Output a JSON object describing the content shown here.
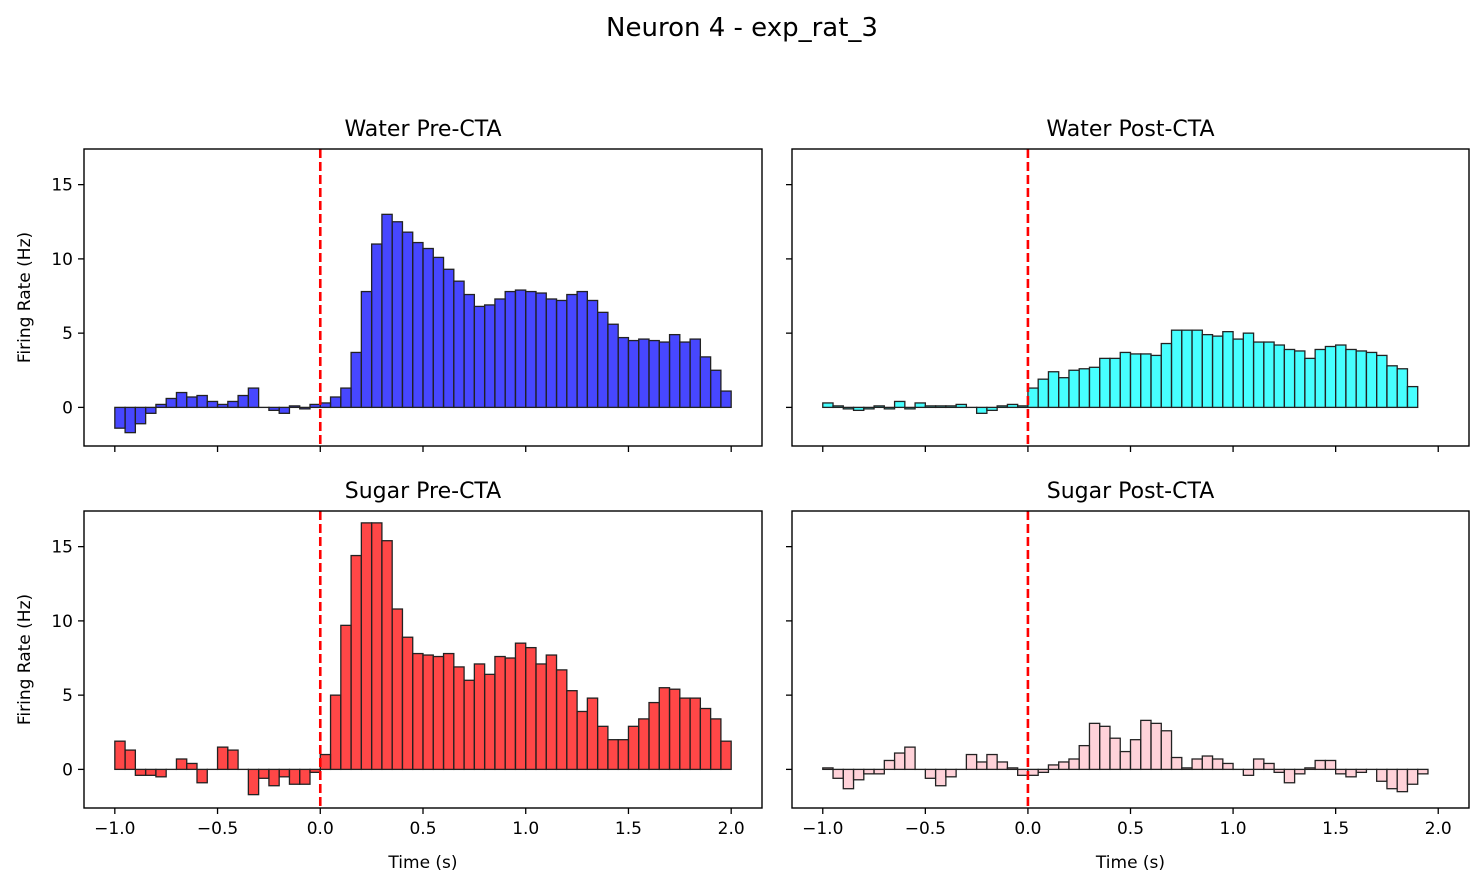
{
  "figure": {
    "title": "Neuron 4 - exp_rat_3"
  },
  "chart_data": [
    {
      "type": "bar",
      "title": "Water Pre-CTA",
      "xlabel": "",
      "ylabel": "Firing Rate (Hz)",
      "xlim": [
        -1.15,
        2.15
      ],
      "ylim": [
        -2.6,
        17.4
      ],
      "xticks": [
        -1.0,
        -0.5,
        0.0,
        0.5,
        1.0,
        1.5,
        2.0
      ],
      "xtick_labels": [
        "−1.0",
        "−0.5",
        "0.0",
        "0.5",
        "1.0",
        "1.5",
        "2.0"
      ],
      "yticks": [
        0,
        5,
        10,
        15
      ],
      "ytick_labels": [
        "0",
        "5",
        "10",
        "15"
      ],
      "show_xtick_labels": false,
      "show_ytick_labels": true,
      "bin_start": -1.0,
      "bin_width": 0.05,
      "bar_color": "#0000ff",
      "edge_color": "#222222",
      "stimulus_line": {
        "x": 0.0,
        "color": "#ff0000",
        "style": "dashed"
      },
      "values": [
        -1.4,
        -1.7,
        -1.1,
        -0.4,
        0.2,
        0.6,
        1.0,
        0.7,
        0.8,
        0.4,
        0.2,
        0.4,
        0.8,
        1.3,
        0.0,
        -0.2,
        -0.4,
        0.1,
        -0.1,
        0.2,
        0.3,
        0.7,
        1.3,
        3.7,
        7.8,
        11.0,
        13.0,
        12.5,
        11.8,
        11.1,
        10.7,
        10.1,
        9.3,
        8.5,
        7.6,
        6.8,
        6.9,
        7.3,
        7.8,
        7.9,
        7.8,
        7.7,
        7.3,
        7.2,
        7.6,
        7.8,
        7.2,
        6.4,
        5.6,
        4.7,
        4.5,
        4.6,
        4.5,
        4.4,
        4.9,
        4.4,
        4.6,
        3.4,
        2.5,
        1.1
      ]
    },
    {
      "type": "bar",
      "title": "Water Post-CTA",
      "xlabel": "",
      "ylabel": "",
      "xlim": [
        -1.15,
        2.15
      ],
      "ylim": [
        -2.6,
        17.4
      ],
      "xticks": [
        -1.0,
        -0.5,
        0.0,
        0.5,
        1.0,
        1.5,
        2.0
      ],
      "xtick_labels": [
        "−1.0",
        "−0.5",
        "0.0",
        "0.5",
        "1.0",
        "1.5",
        "2.0"
      ],
      "yticks": [
        0,
        5,
        10,
        15
      ],
      "ytick_labels": [
        "0",
        "5",
        "10",
        "15"
      ],
      "show_xtick_labels": false,
      "show_ytick_labels": false,
      "bin_start": -1.0,
      "bin_width": 0.05,
      "bar_color": "#00ffff",
      "edge_color": "#222222",
      "stimulus_line": {
        "x": 0.0,
        "color": "#ff0000",
        "style": "dashed"
      },
      "values": [
        0.3,
        0.1,
        -0.1,
        -0.2,
        -0.1,
        0.1,
        -0.1,
        0.4,
        -0.1,
        0.3,
        0.1,
        0.1,
        0.1,
        0.2,
        0.0,
        -0.4,
        -0.2,
        0.1,
        0.2,
        0.1,
        1.3,
        1.9,
        2.4,
        2.0,
        2.5,
        2.6,
        2.7,
        3.3,
        3.3,
        3.7,
        3.6,
        3.6,
        3.5,
        4.3,
        5.2,
        5.2,
        5.2,
        4.9,
        4.8,
        5.1,
        4.6,
        5.0,
        4.4,
        4.4,
        4.2,
        3.9,
        3.8,
        3.3,
        3.9,
        4.1,
        4.2,
        3.9,
        3.8,
        3.7,
        3.5,
        2.8,
        2.6,
        1.4
      ]
    },
    {
      "type": "bar",
      "title": "Sugar Pre-CTA",
      "xlabel": "Time (s)",
      "ylabel": "Firing Rate (Hz)",
      "xlim": [
        -1.15,
        2.15
      ],
      "ylim": [
        -2.6,
        17.4
      ],
      "xticks": [
        -1.0,
        -0.5,
        0.0,
        0.5,
        1.0,
        1.5,
        2.0
      ],
      "xtick_labels": [
        "−1.0",
        "−0.5",
        "0.0",
        "0.5",
        "1.0",
        "1.5",
        "2.0"
      ],
      "yticks": [
        0,
        5,
        10,
        15
      ],
      "ytick_labels": [
        "0",
        "5",
        "10",
        "15"
      ],
      "show_xtick_labels": true,
      "show_ytick_labels": true,
      "bin_start": -1.0,
      "bin_width": 0.05,
      "bar_color": "#ff0000",
      "edge_color": "#222222",
      "stimulus_line": {
        "x": 0.0,
        "color": "#ff0000",
        "style": "dashed"
      },
      "values": [
        1.9,
        1.3,
        -0.4,
        -0.4,
        -0.5,
        0.0,
        0.7,
        0.4,
        -0.9,
        0.0,
        1.5,
        1.3,
        0.0,
        -1.7,
        -0.6,
        -1.1,
        -0.5,
        -1.0,
        -1.0,
        -0.2,
        1.0,
        5.0,
        9.7,
        14.4,
        16.6,
        16.6,
        15.4,
        10.8,
        8.9,
        7.8,
        7.7,
        7.6,
        7.8,
        6.9,
        6.0,
        7.1,
        6.4,
        7.6,
        7.5,
        8.5,
        8.2,
        7.1,
        7.7,
        6.7,
        5.3,
        3.9,
        4.8,
        2.9,
        2.0,
        2.0,
        2.9,
        3.4,
        4.5,
        5.5,
        5.4,
        4.8,
        4.8,
        4.1,
        3.4,
        1.9
      ]
    },
    {
      "type": "bar",
      "title": "Sugar Post-CTA",
      "xlabel": "Time (s)",
      "ylabel": "",
      "xlim": [
        -1.15,
        2.15
      ],
      "ylim": [
        -2.6,
        17.4
      ],
      "xticks": [
        -1.0,
        -0.5,
        0.0,
        0.5,
        1.0,
        1.5,
        2.0
      ],
      "xtick_labels": [
        "−1.0",
        "−0.5",
        "0.0",
        "0.5",
        "1.0",
        "1.5",
        "2.0"
      ],
      "yticks": [
        0,
        5,
        10,
        15
      ],
      "ytick_labels": [
        "0",
        "5",
        "10",
        "15"
      ],
      "show_xtick_labels": true,
      "show_ytick_labels": false,
      "bin_start": -1.0,
      "bin_width": 0.05,
      "bar_color": "#ffc0cb",
      "edge_color": "#222222",
      "stimulus_line": {
        "x": 0.0,
        "color": "#ff0000",
        "style": "dashed"
      },
      "values": [
        0.1,
        -0.6,
        -1.3,
        -0.7,
        -0.3,
        -0.3,
        0.6,
        1.1,
        1.5,
        0.0,
        -0.6,
        -1.1,
        -0.5,
        0.0,
        1.0,
        0.5,
        1.0,
        0.5,
        0.1,
        -0.4,
        -0.4,
        -0.2,
        0.3,
        0.5,
        0.7,
        1.6,
        3.1,
        2.9,
        2.1,
        1.2,
        2.0,
        3.3,
        3.1,
        2.6,
        0.8,
        0.1,
        0.7,
        0.9,
        0.7,
        0.4,
        0.0,
        -0.4,
        0.7,
        0.4,
        -0.2,
        -0.9,
        -0.3,
        0.1,
        0.6,
        0.6,
        -0.3,
        -0.5,
        -0.2,
        0.0,
        -0.8,
        -1.3,
        -1.5,
        -1.0,
        -0.3
      ]
    }
  ]
}
